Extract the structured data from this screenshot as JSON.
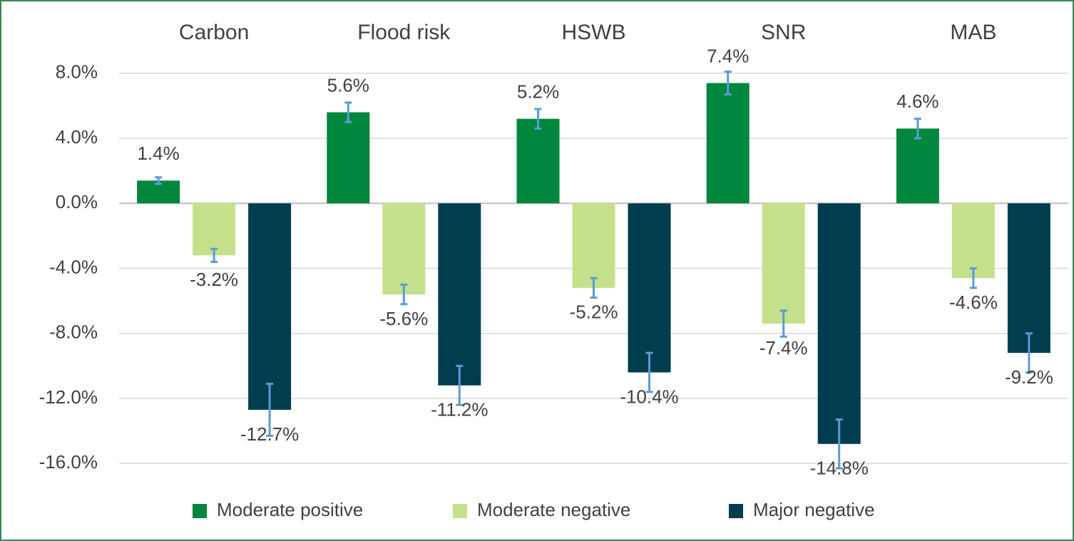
{
  "chart_data": {
    "type": "bar",
    "categories": [
      "Carbon",
      "Flood risk",
      "HSWB",
      "SNR",
      "MAB"
    ],
    "series": [
      {
        "name": "Moderate positive",
        "color": "#00873E",
        "values": [
          1.4,
          5.6,
          5.2,
          7.4,
          4.6
        ],
        "errors": [
          0.2,
          0.6,
          0.6,
          0.7,
          0.6
        ],
        "value_labels": [
          "1.4%",
          "5.6%",
          "5.2%",
          "7.4%",
          "4.6%"
        ]
      },
      {
        "name": "Moderate negative",
        "color": "#C5E08A",
        "values": [
          -3.2,
          -5.6,
          -5.2,
          -7.4,
          -4.6
        ],
        "errors": [
          0.4,
          0.6,
          0.6,
          0.8,
          0.6
        ],
        "value_labels": [
          "-3.2%",
          "-5.6%",
          "-5.2%",
          "-7.4%",
          "-4.6%"
        ]
      },
      {
        "name": "Major negative",
        "color": "#003D4F",
        "values": [
          -12.7,
          -11.2,
          -10.4,
          -14.8,
          -9.2
        ],
        "errors": [
          1.6,
          1.2,
          1.2,
          1.5,
          1.2
        ],
        "value_labels": [
          "-12.7%",
          "-11.2%",
          "-10.4%",
          "-14.8%",
          "-9.2%"
        ]
      }
    ],
    "error_color": "#5B9BD5",
    "ylim": [
      -17,
      9
    ],
    "yticks": [
      {
        "value": 8,
        "label": "8.0%"
      },
      {
        "value": 4,
        "label": "4.0%"
      },
      {
        "value": 0,
        "label": "0.0%"
      },
      {
        "value": -4,
        "label": "-4.0%"
      },
      {
        "value": -8,
        "label": "-8.0%"
      },
      {
        "value": -12,
        "label": "-12.0%"
      },
      {
        "value": -16,
        "label": "-16.0%"
      }
    ],
    "grid": true,
    "legend": "bottom"
  }
}
